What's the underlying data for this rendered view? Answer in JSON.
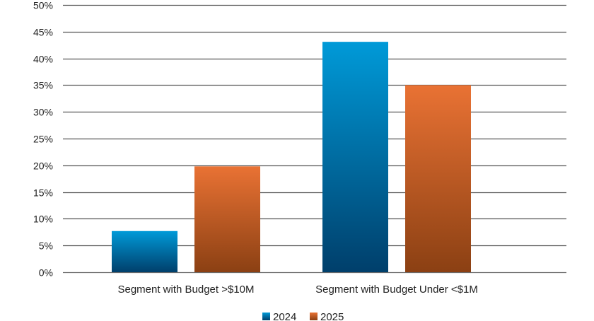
{
  "chart_data": {
    "type": "bar",
    "title": "",
    "xlabel": "",
    "ylabel": "",
    "ylim": [
      0,
      50
    ],
    "yticks": [
      "0%",
      "5%",
      "10%",
      "15%",
      "20%",
      "25%",
      "30%",
      "35%",
      "40%",
      "45%",
      "50%"
    ],
    "grid": true,
    "legend_position": "bottom",
    "categories": [
      "Segment with Budget >$10M",
      "Segment with Budget Under <$1M"
    ],
    "series": [
      {
        "name": "2024",
        "values": [
          7.7,
          43.1
        ],
        "color_top": "#009ad8",
        "color_bottom": "#003f6b"
      },
      {
        "name": "2025",
        "values": [
          19.8,
          35.0
        ],
        "color_top": "#e97234",
        "color_bottom": "#8b4013"
      }
    ]
  }
}
